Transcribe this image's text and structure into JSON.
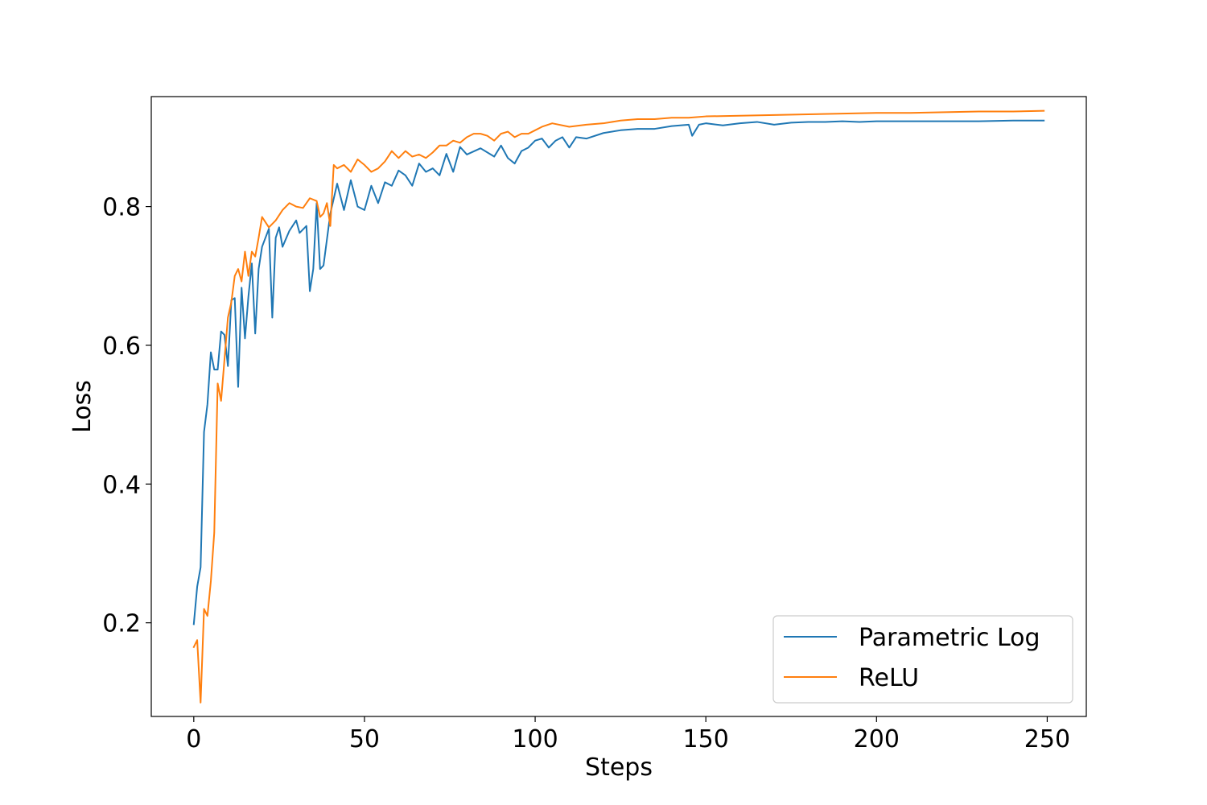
{
  "chart_data": {
    "type": "line",
    "xlabel": "Steps",
    "ylabel": "Loss",
    "xlim": [
      -12.45,
      261.45
    ],
    "ylim": [
      0.065,
      0.9585
    ],
    "x_ticks": [
      0,
      50,
      100,
      150,
      200,
      250
    ],
    "x_tick_labels": [
      "0",
      "50",
      "100",
      "150",
      "200",
      "250"
    ],
    "y_ticks": [
      0.2,
      0.4,
      0.6,
      0.8
    ],
    "y_tick_labels": [
      "0.2",
      "0.4",
      "0.6",
      "0.8"
    ],
    "grid": false,
    "legend_position": "lower right",
    "series": [
      {
        "name": "Parametric Log",
        "color": "#1f77b4",
        "x": [
          0,
          1,
          2,
          3,
          4,
          5,
          6,
          7,
          8,
          9,
          10,
          11,
          12,
          13,
          14,
          15,
          16,
          17,
          18,
          19,
          20,
          22,
          23,
          24,
          25,
          26,
          28,
          30,
          31,
          33,
          34,
          35,
          36,
          37,
          38,
          40,
          42,
          44,
          46,
          48,
          50,
          52,
          54,
          56,
          58,
          60,
          62,
          64,
          66,
          68,
          70,
          72,
          74,
          76,
          78,
          80,
          84,
          88,
          90,
          92,
          94,
          96,
          98,
          100,
          102,
          104,
          106,
          108,
          110,
          112,
          115,
          120,
          125,
          130,
          135,
          140,
          145,
          146,
          148,
          150,
          155,
          160,
          165,
          170,
          175,
          180,
          185,
          190,
          195,
          200,
          210,
          220,
          230,
          240,
          249
        ],
        "values": [
          0.198,
          0.252,
          0.28,
          0.475,
          0.515,
          0.59,
          0.565,
          0.565,
          0.62,
          0.615,
          0.57,
          0.665,
          0.668,
          0.54,
          0.683,
          0.61,
          0.67,
          0.718,
          0.617,
          0.71,
          0.742,
          0.768,
          0.64,
          0.755,
          0.77,
          0.742,
          0.765,
          0.78,
          0.762,
          0.772,
          0.678,
          0.71,
          0.805,
          0.71,
          0.715,
          0.79,
          0.833,
          0.795,
          0.838,
          0.8,
          0.795,
          0.83,
          0.805,
          0.835,
          0.83,
          0.852,
          0.845,
          0.83,
          0.862,
          0.85,
          0.855,
          0.845,
          0.876,
          0.85,
          0.886,
          0.875,
          0.884,
          0.872,
          0.888,
          0.87,
          0.862,
          0.88,
          0.885,
          0.895,
          0.898,
          0.885,
          0.895,
          0.9,
          0.885,
          0.9,
          0.898,
          0.906,
          0.91,
          0.912,
          0.912,
          0.916,
          0.918,
          0.902,
          0.918,
          0.92,
          0.917,
          0.92,
          0.922,
          0.918,
          0.921,
          0.922,
          0.922,
          0.923,
          0.922,
          0.923,
          0.923,
          0.923,
          0.923,
          0.924,
          0.924
        ]
      },
      {
        "name": "ReLU",
        "color": "#ff7f0e",
        "x": [
          0,
          1,
          2,
          3,
          4,
          5,
          6,
          7,
          8,
          9,
          10,
          11,
          12,
          13,
          14,
          15,
          16,
          17,
          18,
          19,
          20,
          22,
          24,
          26,
          28,
          30,
          32,
          34,
          36,
          37,
          38,
          39,
          40,
          41,
          42,
          44,
          46,
          48,
          50,
          52,
          54,
          56,
          58,
          60,
          62,
          64,
          66,
          68,
          70,
          72,
          74,
          76,
          78,
          80,
          82,
          84,
          86,
          88,
          90,
          92,
          94,
          96,
          98,
          100,
          102,
          105,
          110,
          115,
          120,
          125,
          130,
          135,
          140,
          145,
          150,
          160,
          170,
          180,
          190,
          200,
          210,
          220,
          230,
          240,
          249
        ],
        "values": [
          0.165,
          0.175,
          0.085,
          0.22,
          0.21,
          0.26,
          0.33,
          0.545,
          0.52,
          0.58,
          0.64,
          0.662,
          0.7,
          0.71,
          0.692,
          0.735,
          0.7,
          0.735,
          0.728,
          0.755,
          0.785,
          0.77,
          0.78,
          0.795,
          0.805,
          0.8,
          0.798,
          0.812,
          0.808,
          0.785,
          0.79,
          0.805,
          0.772,
          0.86,
          0.855,
          0.86,
          0.85,
          0.868,
          0.86,
          0.85,
          0.855,
          0.865,
          0.88,
          0.87,
          0.88,
          0.872,
          0.875,
          0.87,
          0.878,
          0.888,
          0.888,
          0.895,
          0.892,
          0.9,
          0.905,
          0.905,
          0.902,
          0.895,
          0.905,
          0.908,
          0.9,
          0.905,
          0.905,
          0.91,
          0.915,
          0.92,
          0.915,
          0.918,
          0.92,
          0.924,
          0.926,
          0.926,
          0.928,
          0.928,
          0.93,
          0.931,
          0.932,
          0.933,
          0.934,
          0.935,
          0.935,
          0.936,
          0.937,
          0.937,
          0.938
        ]
      }
    ]
  }
}
